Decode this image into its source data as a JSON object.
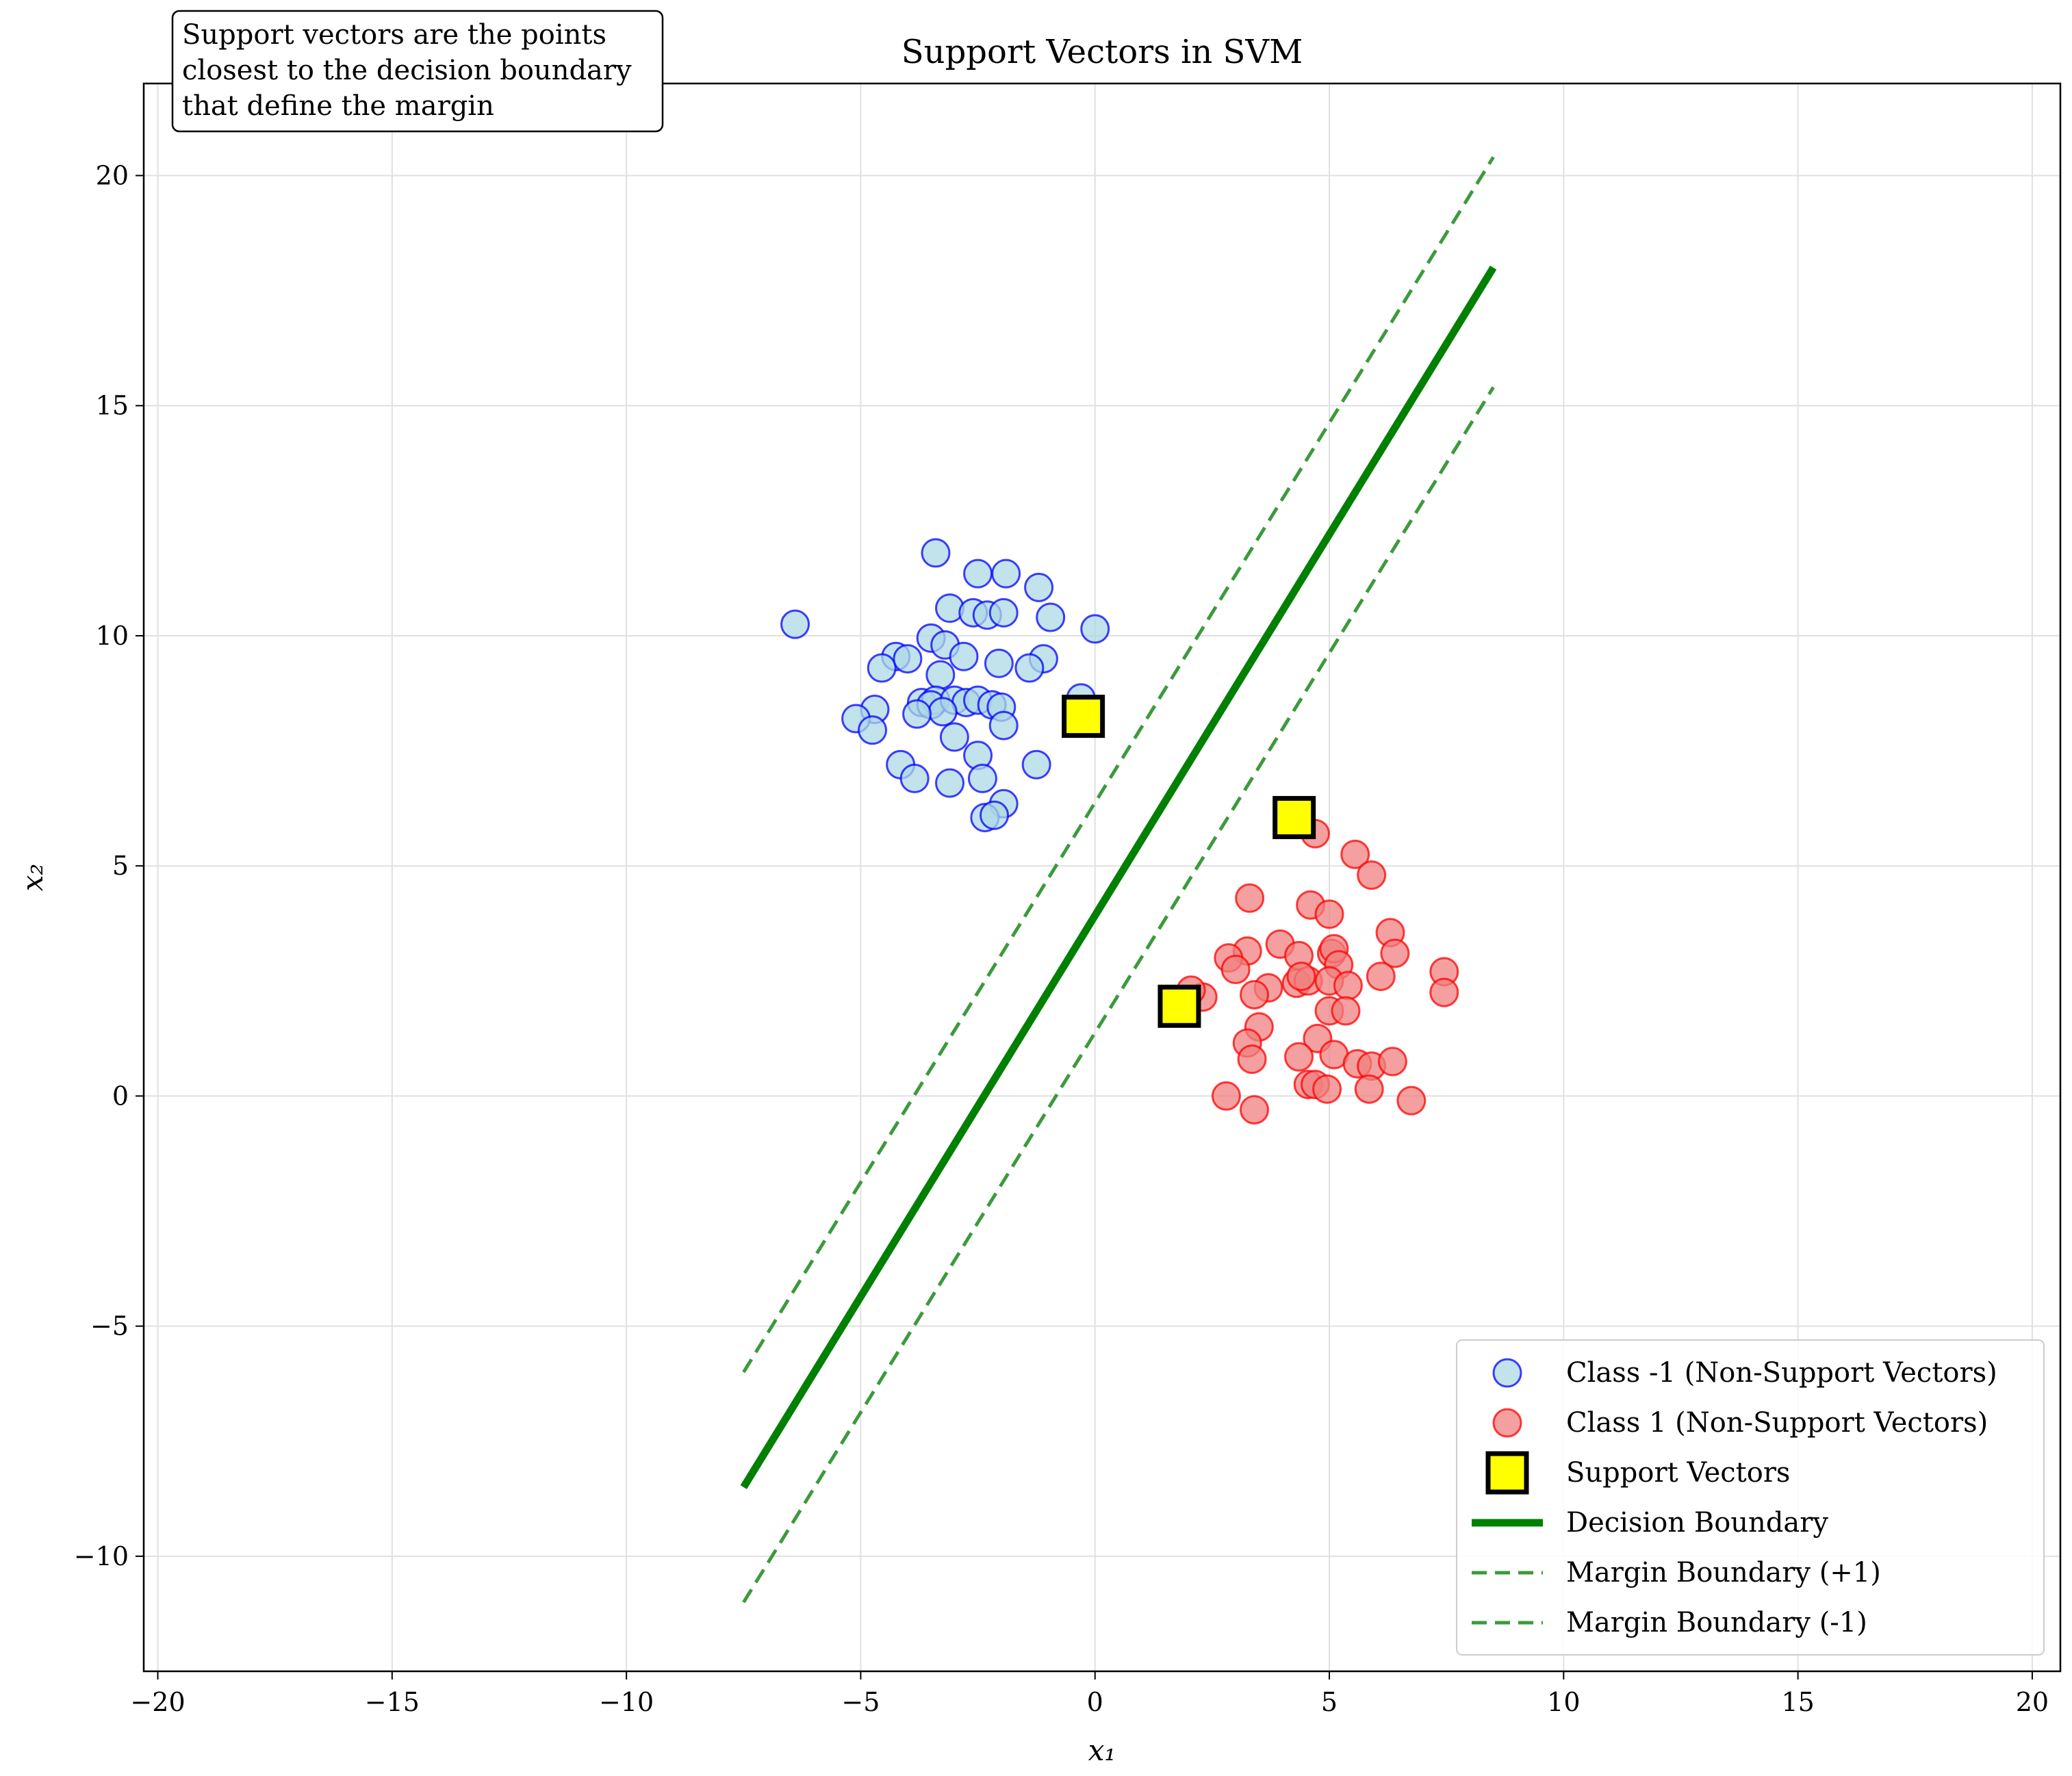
{
  "chart_data": {
    "type": "scatter",
    "title": "Support Vectors in SVM",
    "xlabel": "x₁",
    "ylabel": "x₂",
    "xlim": [
      -20.3,
      20.6
    ],
    "ylim": [
      -12.5,
      22
    ],
    "xticks": [
      -20,
      -15,
      -10,
      -5,
      0,
      5,
      10,
      15,
      20
    ],
    "yticks": [
      -10,
      -5,
      0,
      5,
      10,
      15,
      20
    ],
    "xtick_labels": [
      "−20",
      "−15",
      "−10",
      "−5",
      "0",
      "5",
      "10",
      "15",
      "20"
    ],
    "ytick_labels": [
      "−10",
      "−5",
      "0",
      "5",
      "10",
      "15",
      "20"
    ],
    "grid": true,
    "legend_position": "lower-right",
    "annotation": {
      "lines": [
        "Support vectors are the points",
        "closest to the decision boundary",
        "that define the margin"
      ]
    },
    "series": [
      {
        "name": "Class -1 (Non-Support Vectors)",
        "kind": "scatter",
        "marker": "circle",
        "fill": "#add8e6",
        "stroke": "#0000ff",
        "points": [
          [
            -6.4,
            10.25
          ],
          [
            -3.4,
            11.8
          ],
          [
            -2.5,
            11.35
          ],
          [
            -1.9,
            11.35
          ],
          [
            -1.2,
            11.05
          ],
          [
            -3.1,
            10.6
          ],
          [
            -2.6,
            10.5
          ],
          [
            -2.3,
            10.45
          ],
          [
            -1.95,
            10.5
          ],
          [
            -0.95,
            10.4
          ],
          [
            0.0,
            10.15
          ],
          [
            -3.5,
            9.95
          ],
          [
            -3.2,
            9.8
          ],
          [
            -4.25,
            9.55
          ],
          [
            -4.55,
            9.3
          ],
          [
            -4.0,
            9.5
          ],
          [
            -2.8,
            9.55
          ],
          [
            -2.05,
            9.4
          ],
          [
            -1.1,
            9.5
          ],
          [
            -1.4,
            9.3
          ],
          [
            -3.3,
            9.15
          ],
          [
            -4.7,
            8.4
          ],
          [
            -3.7,
            8.55
          ],
          [
            -3.4,
            8.6
          ],
          [
            -3.5,
            8.5
          ],
          [
            -3.0,
            8.6
          ],
          [
            -2.75,
            8.55
          ],
          [
            -2.5,
            8.6
          ],
          [
            -2.2,
            8.5
          ],
          [
            -2.0,
            8.45
          ],
          [
            -3.25,
            8.35
          ],
          [
            -3.8,
            8.3
          ],
          [
            -0.3,
            8.65
          ],
          [
            -5.1,
            8.2
          ],
          [
            -4.75,
            7.95
          ],
          [
            -1.95,
            8.05
          ],
          [
            -3.0,
            7.8
          ],
          [
            -2.5,
            7.4
          ],
          [
            -1.25,
            7.2
          ],
          [
            -4.15,
            7.2
          ],
          [
            -3.85,
            6.9
          ],
          [
            -3.1,
            6.8
          ],
          [
            -2.4,
            6.9
          ],
          [
            -1.95,
            6.35
          ],
          [
            -2.35,
            6.05
          ],
          [
            -2.15,
            6.1
          ]
        ]
      },
      {
        "name": "Class 1 (Non-Support Vectors)",
        "kind": "scatter",
        "marker": "circle",
        "fill": "#f08080",
        "stroke": "#ff0000",
        "points": [
          [
            4.7,
            5.7
          ],
          [
            5.55,
            5.25
          ],
          [
            5.9,
            4.8
          ],
          [
            3.3,
            4.3
          ],
          [
            4.6,
            4.15
          ],
          [
            5.0,
            3.95
          ],
          [
            6.3,
            3.55
          ],
          [
            6.4,
            3.1
          ],
          [
            3.95,
            3.3
          ],
          [
            3.25,
            3.15
          ],
          [
            2.85,
            3.0
          ],
          [
            3.0,
            2.75
          ],
          [
            4.35,
            3.05
          ],
          [
            5.05,
            3.1
          ],
          [
            5.1,
            3.2
          ],
          [
            5.2,
            2.85
          ],
          [
            4.3,
            2.45
          ],
          [
            4.55,
            2.5
          ],
          [
            4.4,
            2.6
          ],
          [
            5.0,
            2.5
          ],
          [
            5.4,
            2.4
          ],
          [
            6.1,
            2.6
          ],
          [
            7.45,
            2.7
          ],
          [
            7.45,
            2.25
          ],
          [
            3.7,
            2.35
          ],
          [
            3.4,
            2.2
          ],
          [
            2.3,
            2.15
          ],
          [
            2.05,
            2.3
          ],
          [
            5.0,
            1.85
          ],
          [
            5.35,
            1.85
          ],
          [
            3.5,
            1.5
          ],
          [
            4.75,
            1.25
          ],
          [
            3.25,
            1.15
          ],
          [
            3.35,
            0.8
          ],
          [
            4.35,
            0.85
          ],
          [
            5.1,
            0.9
          ],
          [
            5.6,
            0.7
          ],
          [
            5.9,
            0.65
          ],
          [
            6.35,
            0.75
          ],
          [
            4.55,
            0.25
          ],
          [
            4.7,
            0.25
          ],
          [
            4.95,
            0.15
          ],
          [
            5.85,
            0.15
          ],
          [
            2.8,
            0.0
          ],
          [
            6.75,
            -0.1
          ],
          [
            3.4,
            -0.3
          ]
        ]
      },
      {
        "name": "Support Vectors",
        "kind": "scatter",
        "marker": "square",
        "fill": "#ffff00",
        "stroke": "#000000",
        "points": [
          [
            -0.25,
            8.25
          ],
          [
            4.25,
            6.05
          ],
          [
            1.8,
            1.95
          ]
        ]
      },
      {
        "name": "Decision Boundary",
        "kind": "line",
        "stroke": "#008000",
        "dash": "solid",
        "points": [
          [
            -7.5,
            -8.5
          ],
          [
            8.5,
            18.0
          ]
        ]
      },
      {
        "name": "Margin Boundary (+1)",
        "kind": "line",
        "stroke": "#3c9a3c",
        "dash": "dashed",
        "points": [
          [
            -7.5,
            -6.0
          ],
          [
            8.5,
            20.4
          ]
        ]
      },
      {
        "name": "Margin Boundary (-1)",
        "kind": "line",
        "stroke": "#3c9a3c",
        "dash": "dashed",
        "points": [
          [
            -7.5,
            -11.0
          ],
          [
            8.5,
            15.4
          ]
        ]
      }
    ]
  }
}
